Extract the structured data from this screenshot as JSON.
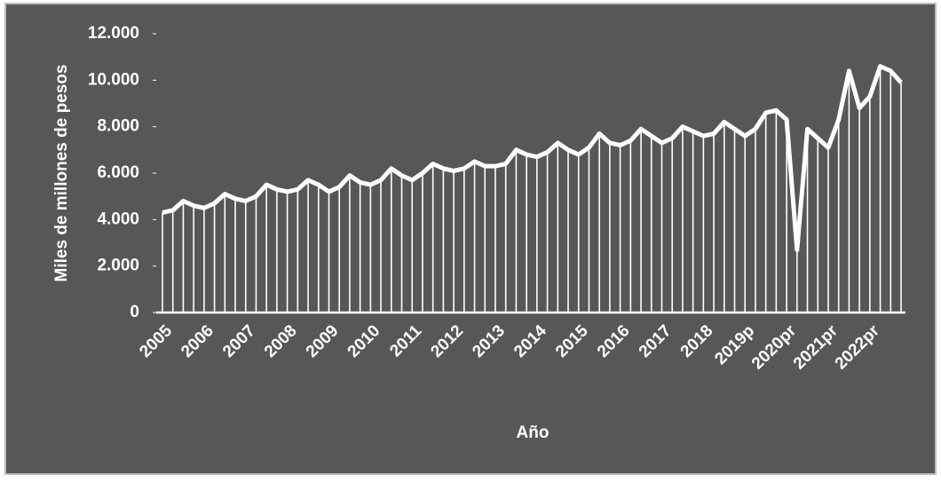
{
  "chart_data": {
    "type": "line",
    "y_axis_label": "Miles de millones de pesos",
    "x_axis_label": "Año",
    "categories": [
      "2005",
      null,
      null,
      null,
      "2006",
      null,
      null,
      null,
      "2007",
      null,
      null,
      null,
      "2008",
      null,
      null,
      null,
      "2009",
      null,
      null,
      null,
      "2010",
      null,
      null,
      null,
      "2011",
      null,
      null,
      null,
      "2012",
      null,
      null,
      null,
      "2013",
      null,
      null,
      null,
      "2014",
      null,
      null,
      null,
      "2015",
      null,
      null,
      null,
      "2016",
      null,
      null,
      null,
      "2017",
      null,
      null,
      null,
      "2018",
      null,
      null,
      null,
      "2019p",
      null,
      null,
      null,
      "2020pr",
      null,
      null,
      null,
      "2021pr",
      null,
      null,
      null,
      "2022pr",
      null,
      null,
      null
    ],
    "values": [
      4300,
      4400,
      4800,
      4600,
      4500,
      4700,
      5100,
      4900,
      4800,
      5000,
      5500,
      5300,
      5200,
      5300,
      5700,
      5500,
      5200,
      5400,
      5900,
      5600,
      5500,
      5700,
      6200,
      5900,
      5700,
      6000,
      6400,
      6200,
      6100,
      6200,
      6500,
      6300,
      6300,
      6400,
      7000,
      6800,
      6700,
      6900,
      7300,
      7000,
      6800,
      7100,
      7700,
      7300,
      7200,
      7400,
      7900,
      7600,
      7300,
      7500,
      8000,
      7800,
      7600,
      7700,
      8200,
      7900,
      7600,
      7900,
      8600,
      8700,
      8300,
      2700,
      7900,
      7500,
      7100,
      8300,
      10400,
      8800,
      9300,
      10600,
      10400,
      9900
    ],
    "color": "#ffffff",
    "drop_lines": true,
    "ylim": [
      0,
      12000
    ],
    "yticks": [
      {
        "value": 0,
        "label": "0"
      },
      {
        "value": 2000,
        "label": "2.000"
      },
      {
        "value": 4000,
        "label": "4.000"
      },
      {
        "value": 6000,
        "label": "6.000"
      },
      {
        "value": 8000,
        "label": "8.000"
      },
      {
        "value": 10000,
        "label": "10.000"
      },
      {
        "value": 12000,
        "label": "12.000"
      }
    ]
  }
}
